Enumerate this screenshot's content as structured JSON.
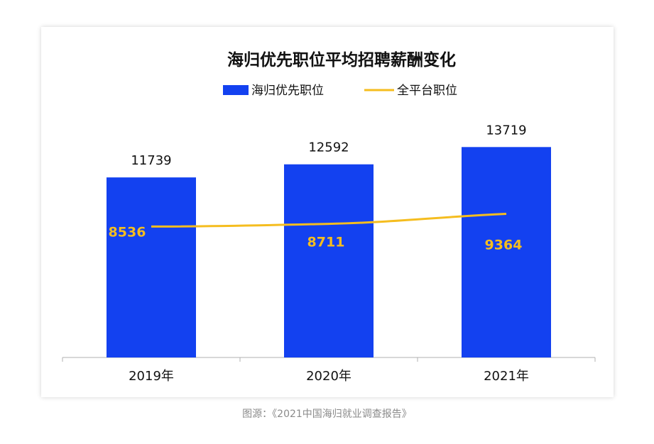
{
  "chart_data": {
    "type": "bar",
    "title": "海归优先职位平均招聘薪酬变化",
    "categories": [
      "2019年",
      "2020年",
      "2021年"
    ],
    "series": [
      {
        "name": "海归优先职位",
        "kind": "bar",
        "color": "#1341f0",
        "values": [
          11739,
          12592,
          13719
        ]
      },
      {
        "name": "全平台职位",
        "kind": "line",
        "color": "#f5bd1f",
        "values": [
          8536,
          8711,
          9364
        ]
      }
    ],
    "ylim": [
      0,
      16000
    ],
    "grid": false,
    "legend": "top-center"
  },
  "caption": "图源：《2021中国海归就业调查报告》"
}
